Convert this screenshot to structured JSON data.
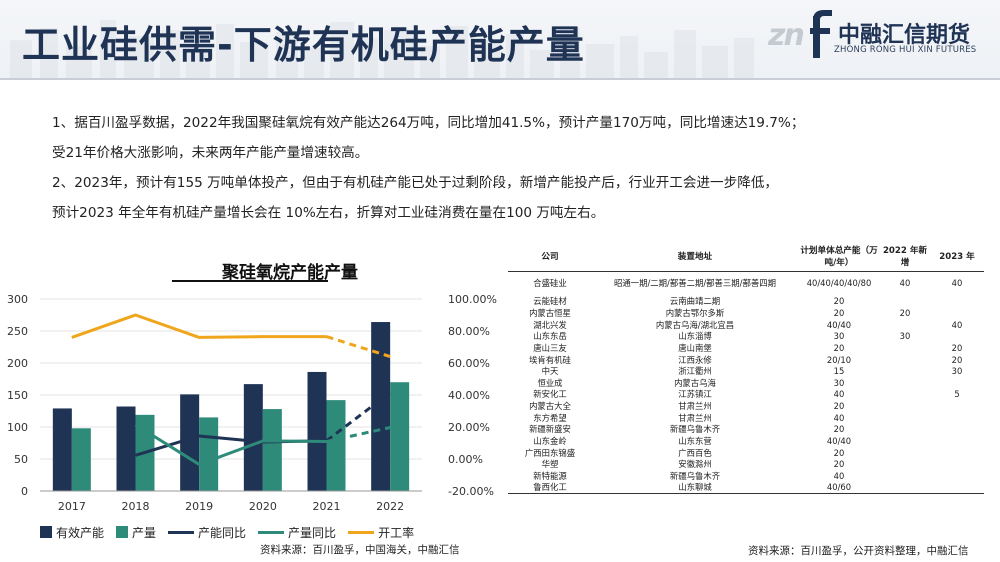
{
  "header": {
    "title": "工业硅供需-下游有机硅产能产量",
    "logo_name": "中融汇信期货",
    "logo_sub": "ZHONG RONG HUI XIN FUTURES"
  },
  "bullets": [
    "1、据百川盈孚数据，2022年我国聚硅氧烷有效产能达264万吨，同比增加41.5%，预计产量170万吨，同比增速达19.7%；",
    "受21年价格大涨影响，未来两年产能产量增速较高。",
    "2、2023年，预计有155 万吨单体投产，但由于有机硅产能已处于过剩阶段，新增产能投产后，行业开工会进一步降低，",
    "预计2023 年全年有机硅产量增长会在 10%左右，折算对工业硅消费在量在100 万吨左右。"
  ],
  "colors": {
    "capacity": "#1f3354",
    "output": "#2e8b7a",
    "capacity_yoy": "#1f3354",
    "output_yoy": "#2e8b7a",
    "utilization": "#f0a61c"
  },
  "chart_data": {
    "type": "bar",
    "title": "聚硅氧烷产能产量",
    "categories": [
      "2017",
      "2018",
      "2019",
      "2020",
      "2021",
      "2022"
    ],
    "left_axis": {
      "min": 0,
      "max": 300,
      "ticks": [
        "0",
        "50",
        "100",
        "150",
        "200",
        "250",
        "300"
      ]
    },
    "right_axis": {
      "min": -20,
      "max": 100,
      "ticks": [
        "-20.00%",
        "0.00%",
        "20.00%",
        "40.00%",
        "60.00%",
        "80.00%",
        "100.00%"
      ]
    },
    "grid": true,
    "legend_position": "bottom",
    "series": [
      {
        "name": "有效产能",
        "kind": "bar",
        "axis": "left",
        "values": [
          129,
          132,
          151,
          167,
          186,
          264
        ]
      },
      {
        "name": "产量",
        "kind": "bar",
        "axis": "left",
        "values": [
          98,
          119,
          115,
          128,
          142,
          170
        ]
      },
      {
        "name": "产能同比",
        "kind": "line",
        "axis": "right",
        "values": [
          null,
          2.3,
          14.4,
          10.6,
          11.4,
          41.5
        ],
        "dashed_last_segment": true
      },
      {
        "name": "产量同比",
        "kind": "line",
        "axis": "right",
        "values": [
          null,
          21.4,
          -3.4,
          11.3,
          10.9,
          19.7
        ],
        "dashed_last_segment": true
      },
      {
        "name": "开工率",
        "kind": "line",
        "axis": "right",
        "values": [
          76,
          90,
          76,
          76.5,
          76.5,
          64
        ],
        "dashed_last_segment": true
      }
    ]
  },
  "sources": {
    "left": "资料来源：百川盈孚，中国海关，中融汇信",
    "right": "资料来源：百川盈孚，公开资料整理，中融汇信"
  },
  "table": {
    "headers": [
      "公司",
      "装置地址",
      "计划单体总产能（万吨/年）",
      "2022 年新增",
      "2023 年"
    ],
    "rows": [
      [
        "合盛硅业",
        "昭通一期/二期/鄯善二期/鄯善三期/鄯善四期",
        "40/40/40/40/80",
        "40",
        "40"
      ],
      [
        "云能硅材",
        "云南曲靖二期",
        "20",
        "",
        ""
      ],
      [
        "内蒙古恒星",
        "内蒙古鄂尔多斯",
        "20",
        "20",
        ""
      ],
      [
        "湖北兴发",
        "内蒙古乌海/湖北宜昌",
        "40/40",
        "",
        "40"
      ],
      [
        "山东东岳",
        "山东淄博",
        "30",
        "30",
        ""
      ],
      [
        "唐山三友",
        "唐山南堡",
        "20",
        "",
        "20"
      ],
      [
        "埃肯有机硅",
        "江西永修",
        "20/10",
        "",
        "20"
      ],
      [
        "中天",
        "浙江衢州",
        "15",
        "",
        "30"
      ],
      [
        "恒业成",
        "内蒙古乌海",
        "30",
        "",
        ""
      ],
      [
        "新安化工",
        "江苏镇江",
        "40",
        "",
        "5"
      ],
      [
        "内蒙古大全",
        "甘肃兰州",
        "20",
        "",
        ""
      ],
      [
        "东方希望",
        "甘肃兰州",
        "40",
        "",
        ""
      ],
      [
        "新疆新盛安",
        "新疆乌鲁木齐",
        "20",
        "",
        ""
      ],
      [
        "山东金岭",
        "山东东营",
        "40/40",
        "",
        ""
      ],
      [
        "广西田东锦盛",
        "广西百色",
        "20",
        "",
        ""
      ],
      [
        "华塑",
        "安徽滁州",
        "20",
        "",
        ""
      ],
      [
        "新特能源",
        "新疆乌鲁木齐",
        "40",
        "",
        ""
      ],
      [
        "鲁西化工",
        "山东聊城",
        "40/60",
        "",
        ""
      ]
    ]
  }
}
